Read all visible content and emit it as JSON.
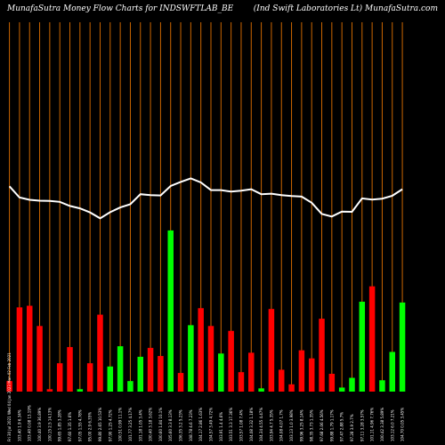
{
  "chart_data": {
    "type": "bar",
    "title_left": "MunafaSutra  Money Flow  Charts for INDSWFTLAB_BE",
    "title_right": "(Ind Swift Laboratories Lt) MunafaSutra.com",
    "colors": {
      "up": "#00ff00",
      "down": "#ff0000",
      "grid": "#cc6600",
      "line": "#ffffff",
      "background": "#000000"
    },
    "bar_scale": [
      0,
      100
    ],
    "line_scale": [
      0,
      100
    ],
    "bars": [
      {
        "label": "Fri 30 Jul 2021 Wed 04 Jan 2023 Mon 02 Feb 2021",
        "value": 6.5,
        "color": "down"
      },
      {
        "label": "103.40 1.9 6.34%",
        "value": 52,
        "color": "down"
      },
      {
        "label": "103.40 0.08 13.19%",
        "value": 53,
        "color": "down"
      },
      {
        "label": "100.40 3.9 36.89%",
        "value": 40.5,
        "color": "down"
      },
      {
        "label": "100.15 2.5 14.13%",
        "value": 1.5,
        "color": "down"
      },
      {
        "label": "99.65 1.85 3.28%",
        "value": 17.5,
        "color": "down"
      },
      {
        "label": "97.60 1.35 1.6%",
        "value": 27.5,
        "color": "down"
      },
      {
        "label": "97.05 1.55 4.78%",
        "value": 1.5,
        "color": "up"
      },
      {
        "label": "95.00 2.9 6.35%",
        "value": 17.5,
        "color": "down"
      },
      {
        "label": "99.80 2.65 10.53%",
        "value": 47.5,
        "color": "down"
      },
      {
        "label": "97.90 1.25 4.72%",
        "value": 15.5,
        "color": "up"
      },
      {
        "label": "100.51 0.99 11.1%",
        "value": 28,
        "color": "up"
      },
      {
        "label": "101.77 3.25 4.17%",
        "value": 6.5,
        "color": "up"
      },
      {
        "label": "101.18 1.05 3.4%",
        "value": 21.5,
        "color": "up"
      },
      {
        "label": "100.40 3.18 3.62%",
        "value": 27,
        "color": "down"
      },
      {
        "label": "100.60 1.84 10.1%",
        "value": 22,
        "color": "down"
      },
      {
        "label": "105.60 3.3 8.13%",
        "value": 99.5,
        "color": "up"
      },
      {
        "label": "106.35 3.2 5.23%",
        "value": 11.5,
        "color": "down"
      },
      {
        "label": "108.78 4.6 7.23%",
        "value": 41,
        "color": "up"
      },
      {
        "label": "104.17 2.86 1.63%",
        "value": 51.5,
        "color": "down"
      },
      {
        "label": "104.57 3.49 4.72%",
        "value": 40.5,
        "color": "down"
      },
      {
        "label": "103.91 1.4 4.6%",
        "value": 23.5,
        "color": "up"
      },
      {
        "label": "103.51 3.3 17.36%",
        "value": 37.5,
        "color": "down"
      },
      {
        "label": "103.57 1.08 7.4%",
        "value": 12,
        "color": "down"
      },
      {
        "label": "104.08 3.32 1.18%",
        "value": 24,
        "color": "down"
      },
      {
        "label": "104.34 4.55 4.47%",
        "value": 2,
        "color": "up"
      },
      {
        "label": "103.94 4.7 5.35%",
        "value": 51,
        "color": "down"
      },
      {
        "label": "104.08 4.07 1.7%",
        "value": 13.5,
        "color": "down"
      },
      {
        "label": "103.13 1.0 3.98%",
        "value": 4.5,
        "color": "down"
      },
      {
        "label": "99.96 3.25 8.14%",
        "value": 25.5,
        "color": "down"
      },
      {
        "label": "98.35 3.73 1.35%",
        "value": 20.5,
        "color": "down"
      },
      {
        "label": "97.68 2.06 4.56%",
        "value": 45,
        "color": "down"
      },
      {
        "label": "99.88 1.79 1.17%",
        "value": 11,
        "color": "down"
      },
      {
        "label": "97.47 2.88 5.7%",
        "value": 2.5,
        "color": "up"
      },
      {
        "label": "97.28 3.9 2.7%",
        "value": 8.5,
        "color": "up"
      },
      {
        "label": "97.11 3.28 3.57%",
        "value": 55.5,
        "color": "up"
      },
      {
        "label": "101.11 4.96 7.76%",
        "value": 65,
        "color": "down"
      },
      {
        "label": "100.42 3.38 5.89%",
        "value": 7,
        "color": "up"
      },
      {
        "label": "103.12 6.0 7.21%",
        "value": 24.5,
        "color": "up"
      },
      {
        "label": "104.70 0.05 3.45%",
        "value": 55,
        "color": "up"
      }
    ],
    "line": [
      69.9,
      66.1,
      65.3,
      65.0,
      64.9,
      64.6,
      63.2,
      62.4,
      61.0,
      59.0,
      61.1,
      62.7,
      63.8,
      67.2,
      66.9,
      66.8,
      70.0,
      71.4,
      72.6,
      71.2,
      68.6,
      68.6,
      68.1,
      68.4,
      68.9,
      67.2,
      67.4,
      66.9,
      66.6,
      66.4,
      64.3,
      60.5,
      59.6,
      61.3,
      61.2,
      65.8,
      65.4,
      65.7,
      66.7,
      68.9
    ]
  }
}
